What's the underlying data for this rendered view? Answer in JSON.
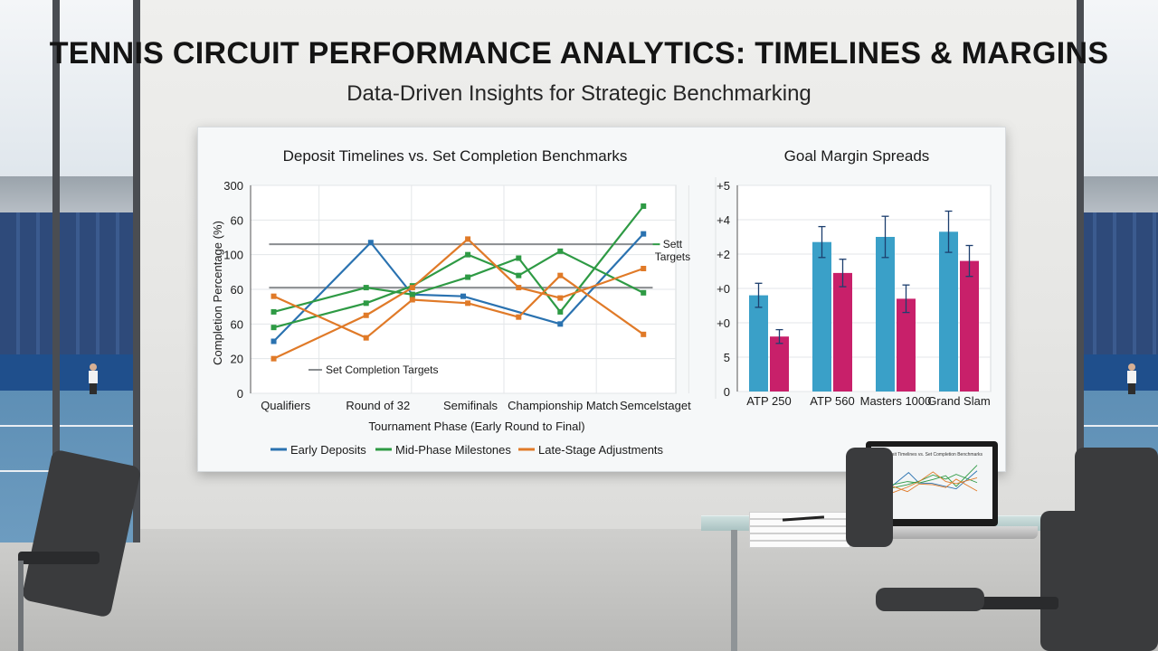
{
  "header": {
    "title": "TENNIS CIRCUIT PERFORMANCE ANALYTICS: TIMELINES & MARGINS",
    "subtitle": "Data-Driven Insights for Strategic Benchmarking"
  },
  "laptop": {
    "screen_title": "Deposit Timelines vs. Set Completion Benchmarks"
  },
  "chart_data": [
    {
      "type": "line",
      "title": "Deposit Timelines vs. Set Completion Benchmarks",
      "xlabel": "Tournament Phase (Early Round to Final)",
      "ylabel": "Completion Percentage (%)",
      "y_tick_labels": [
        "300",
        "60",
        "100",
        "60",
        "60",
        "20",
        "0"
      ],
      "y_tick_positions": [
        6,
        5,
        4,
        3,
        2,
        1,
        0
      ],
      "ylim": [
        0,
        6
      ],
      "x_tick_labels": [
        "Qualifiers",
        "Round of 32",
        "Semifinals",
        "Championship Match",
        "Semcelstaget"
      ],
      "x_tick_positions": [
        0,
        1,
        2,
        3,
        4
      ],
      "xlim": [
        -0.3,
        4.3
      ],
      "grid": true,
      "legend_placement": "bottom",
      "reference_lines": [
        {
          "y": 4.3,
          "label": "Sett Targets",
          "x_start": -0.1,
          "x_end": 4.05
        },
        {
          "y": 3.05,
          "label": "Set Completion Targets",
          "x_start": -0.1,
          "x_end": 4.05
        }
      ],
      "legend_reference_label": "Set Completion Targets",
      "series": [
        {
          "name": "Early Deposits",
          "color": "#2a72b0",
          "x": [
            -0.05,
            1.0,
            1.45,
            2.0,
            3.05,
            3.95
          ],
          "y": [
            1.5,
            4.35,
            2.85,
            2.8,
            2.0,
            4.6
          ]
        },
        {
          "name": "Mid-Phase Milestones",
          "color": "#2e9a44",
          "x": [
            -0.05,
            0.95,
            1.45,
            2.05,
            2.6,
            3.05,
            3.95
          ],
          "y": [
            2.35,
            3.05,
            2.85,
            3.35,
            3.9,
            2.35,
            5.4
          ]
        },
        {
          "name": "Mid-Phase Milestones b",
          "color": "#2e9a44",
          "x": [
            -0.05,
            0.95,
            1.45,
            2.05,
            2.6,
            3.05,
            3.95
          ],
          "y": [
            1.9,
            2.6,
            3.1,
            4.0,
            3.4,
            4.1,
            2.9
          ]
        },
        {
          "name": "Late-Stage Adjustments",
          "color": "#e07a28",
          "x": [
            -0.05,
            0.95,
            1.45,
            2.05,
            2.6,
            3.05,
            3.95
          ],
          "y": [
            2.8,
            1.6,
            2.7,
            2.6,
            2.2,
            3.4,
            1.7
          ]
        },
        {
          "name": "Late-Stage Adjustments b",
          "color": "#e07a28",
          "x": [
            -0.05,
            0.95,
            1.45,
            2.05,
            2.6,
            3.05,
            3.95
          ],
          "y": [
            1.0,
            2.25,
            3.05,
            4.45,
            3.05,
            2.75,
            3.6
          ]
        }
      ],
      "legend": [
        {
          "label": "Early Deposits",
          "color": "#2a72b0"
        },
        {
          "label": "Mid-Phase Milestones",
          "color": "#2e9a44"
        },
        {
          "label": "Late-Stage Adjustments",
          "color": "#e07a28"
        }
      ]
    },
    {
      "type": "bar",
      "title": "Goal Margin Spreads",
      "categories": [
        "ATP 250",
        "ATP 560",
        "Masters 1000",
        "Grand Slam"
      ],
      "y_tick_labels": [
        "+5",
        "+4",
        "+2",
        "+0",
        "+0",
        "5",
        "0"
      ],
      "y_tick_positions": [
        6,
        5,
        4,
        3,
        2,
        1,
        0
      ],
      "ylim": [
        0,
        6
      ],
      "grid": true,
      "series": [
        {
          "color": "#3aa0c8",
          "values": [
            2.8,
            4.35,
            4.5,
            4.65
          ],
          "error": [
            0.35,
            0.45,
            0.6,
            0.6
          ]
        },
        {
          "color": "#c8206a",
          "values": [
            1.6,
            3.45,
            2.7,
            3.8
          ],
          "error": [
            0.2,
            0.4,
            0.4,
            0.45
          ]
        }
      ]
    }
  ]
}
